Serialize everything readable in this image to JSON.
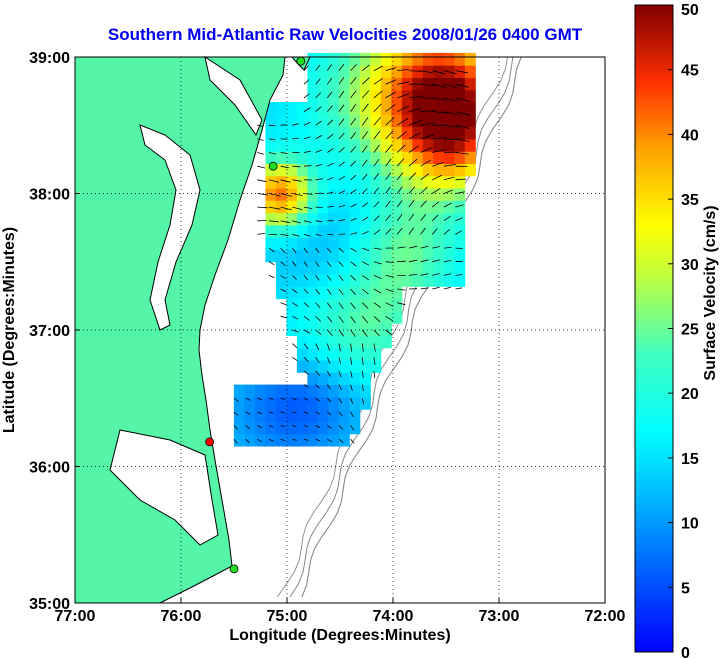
{
  "chart_data": {
    "type": "heatmap",
    "title": "Southern Mid-Atlantic Raw Velocities 2008/01/26 0400 GMT",
    "xlabel": "Longitude (Degrees:Minutes)",
    "ylabel": "Latitude (Degrees:Minutes)",
    "colorbar_label": "Surface Velocity (cm/s)",
    "xlim": [
      -77,
      -72
    ],
    "ylim": [
      35,
      39
    ],
    "x_ticks": [
      {
        "value": -77,
        "label": "77:00"
      },
      {
        "value": -76,
        "label": "76:00"
      },
      {
        "value": -75,
        "label": "75:00"
      },
      {
        "value": -74,
        "label": "74:00"
      },
      {
        "value": -73,
        "label": "73:00"
      },
      {
        "value": -72,
        "label": "72:00"
      }
    ],
    "y_ticks": [
      {
        "value": 35,
        "label": "35:00"
      },
      {
        "value": 36,
        "label": "36:00"
      },
      {
        "value": 37,
        "label": "37:00"
      },
      {
        "value": 38,
        "label": "38:00"
      },
      {
        "value": 39,
        "label": "39:00"
      }
    ],
    "colorbar_range": [
      0,
      50
    ],
    "colorbar_ticks": [
      0,
      5,
      10,
      15,
      20,
      25,
      30,
      35,
      40,
      45,
      50
    ],
    "grid": true,
    "colors": {
      "title": "#0000ee",
      "land": "#55f5a8",
      "ocean": "#ffffff",
      "bathymetry": "#888888",
      "station_green": "#22dd22",
      "station_red": "#ff0000"
    },
    "stations": [
      {
        "lon": -74.87,
        "lat": 38.97,
        "color": "green"
      },
      {
        "lon": -75.13,
        "lat": 38.2,
        "color": "green"
      },
      {
        "lon": -75.73,
        "lat": 36.18,
        "color": "red"
      },
      {
        "lon": -75.5,
        "lat": 35.25,
        "color": "green"
      }
    ],
    "velocity_blobs": [
      {
        "lon": -74.5,
        "lat": 38.3,
        "spread": 0.55,
        "speed": 13
      },
      {
        "lon": -73.55,
        "lat": 38.75,
        "spread": 0.35,
        "speed": 40
      },
      {
        "lon": -73.5,
        "lat": 38.35,
        "spread": 0.3,
        "speed": 35
      },
      {
        "lon": -75.12,
        "lat": 37.95,
        "spread": 0.18,
        "speed": 42
      },
      {
        "lon": -74.2,
        "lat": 38.65,
        "spread": 0.4,
        "speed": 25
      },
      {
        "lon": -74.6,
        "lat": 37.55,
        "spread": 0.35,
        "speed": 10
      },
      {
        "lon": -73.95,
        "lat": 37.55,
        "spread": 0.3,
        "speed": 25
      },
      {
        "lon": -74.3,
        "lat": 37.0,
        "spread": 0.3,
        "speed": 23
      },
      {
        "lon": -74.9,
        "lat": 36.9,
        "spread": 0.35,
        "speed": 17
      },
      {
        "lon": -75.1,
        "lat": 36.4,
        "spread": 0.3,
        "speed": 7
      },
      {
        "lon": -74.7,
        "lat": 36.45,
        "spread": 0.25,
        "speed": 10
      }
    ]
  }
}
